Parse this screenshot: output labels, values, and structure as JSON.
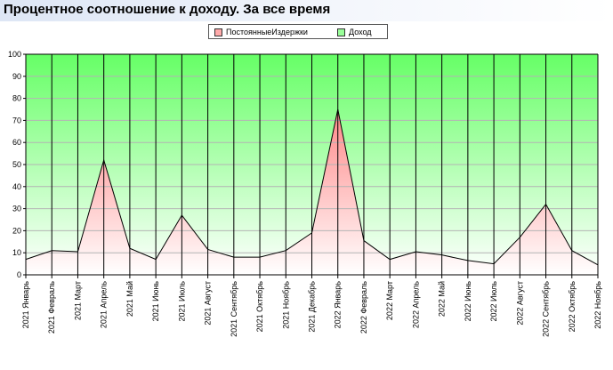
{
  "title": "Процентное соотношение к доходу. За все время",
  "legend": {
    "series1": "ПостоянныеИздержки",
    "series2": "Доход"
  },
  "colors": {
    "costs_top": "#ff8080",
    "costs_bottom": "#ffffff",
    "income_top": "#66ff66",
    "income_bottom": "#ffffff",
    "line": "#000000",
    "grid": "#b4b4b4"
  },
  "chart_data": {
    "type": "area",
    "stacked": true,
    "title": "Процентное соотношение к доходу. За все время",
    "categories": [
      "2021 Январь",
      "2021 Февраль",
      "2021 Март",
      "2021 Апрель",
      "2021 Май",
      "2021 Июнь",
      "2021 Июль",
      "2021 Август",
      "2021 Сентябрь",
      "2021 Октябрь",
      "2021 Ноябрь",
      "2021 Декабрь",
      "2022 Январь",
      "2022 Февраль",
      "2022 Март",
      "2022 Апрель",
      "2022 Май",
      "2022 Июнь",
      "2022 Июль",
      "2022 Август",
      "2022 Сентябрь",
      "2022 Октябрь",
      "2022 Ноябрь"
    ],
    "series": [
      {
        "name": "ПостоянныеИздержки",
        "values": [
          7,
          11,
          10.5,
          52,
          12,
          7,
          27,
          11.5,
          8,
          8,
          11,
          19,
          75,
          15.5,
          7,
          10.5,
          9,
          6.5,
          5,
          17,
          32,
          11,
          4.5
        ]
      },
      {
        "name": "Доход",
        "values": [
          93,
          89,
          89.5,
          48,
          88,
          93,
          73,
          88.5,
          92,
          92,
          89,
          81,
          25,
          84.5,
          93,
          89.5,
          91,
          93.5,
          95,
          83,
          68,
          89,
          95.5
        ]
      }
    ],
    "ylim": [
      0,
      100
    ],
    "yticks": [
      0,
      10,
      20,
      30,
      40,
      50,
      60,
      70,
      80,
      90,
      100
    ],
    "grid": true,
    "legend_position": "top-center"
  }
}
